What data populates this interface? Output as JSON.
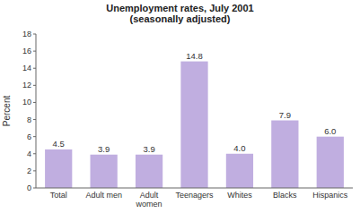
{
  "chart_data": {
    "type": "bar",
    "title": "Unemployment rates, July 2001\n(seasonally adjusted)",
    "categories": [
      "Total",
      "Adult men",
      "Adult\nwomen",
      "Teenagers",
      "Whites",
      "Blacks",
      "Hispanics"
    ],
    "values": [
      4.5,
      3.9,
      3.9,
      14.8,
      4.0,
      7.9,
      6.0
    ],
    "value_labels": [
      "4.5",
      "3.9",
      "3.9",
      "14.8",
      "4.0",
      "7.9",
      "6.0"
    ],
    "color": "#c0aee0",
    "ylabel": "Percent",
    "ylim": [
      0,
      18
    ],
    "yticks": [
      0,
      2,
      4,
      6,
      8,
      10,
      12,
      14,
      16,
      18
    ],
    "grid": false,
    "data_labels": true
  }
}
